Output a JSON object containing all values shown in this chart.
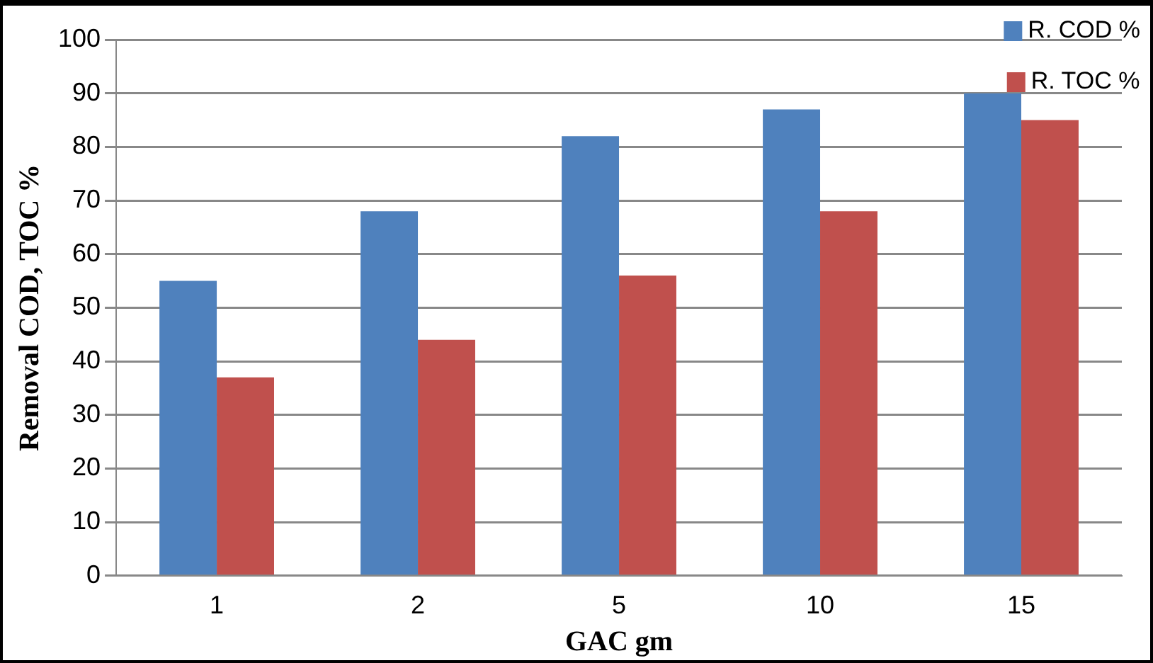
{
  "chart_data": {
    "type": "bar",
    "xlabel": "GAC gm",
    "ylabel": "Removal COD, TOC %",
    "categories": [
      "1",
      "2",
      "5",
      "10",
      "15"
    ],
    "series": [
      {
        "name": "R. COD %",
        "color": "#4f81bd",
        "values": [
          55,
          68,
          82,
          87,
          90
        ]
      },
      {
        "name": "R. TOC %",
        "color": "#c0504d",
        "values": [
          37,
          44,
          56,
          68,
          85
        ]
      }
    ],
    "ylim": [
      0,
      100
    ],
    "yticks": [
      0,
      10,
      20,
      30,
      40,
      50,
      60,
      70,
      80,
      90,
      100
    ],
    "grid": "y",
    "legend": "top right"
  }
}
